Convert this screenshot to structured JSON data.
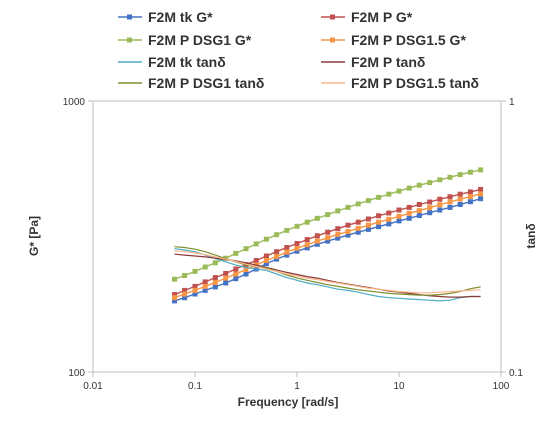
{
  "chart_data": {
    "type": "line",
    "title": "",
    "xlabel": "Frequency [rad/s]",
    "ylabel_left": "G* [Pa]",
    "ylabel_right": "tanδ",
    "x_scale": "log",
    "y_left_scale": "log",
    "y_right_scale": "log",
    "xlim": [
      0.01,
      100
    ],
    "ylim_left": [
      100,
      1000
    ],
    "ylim_right": [
      0.1,
      1
    ],
    "x_ticks": [
      "0.01",
      "0.1",
      "1",
      "10",
      "100"
    ],
    "y_left_ticks": [
      "100",
      "1000"
    ],
    "y_right_ticks": [
      "0.1",
      "1"
    ],
    "grid": false,
    "legend_position": "top",
    "x": [
      0.063,
      0.079,
      0.1,
      0.126,
      0.158,
      0.2,
      0.251,
      0.316,
      0.398,
      0.501,
      0.631,
      0.794,
      1.0,
      1.26,
      1.58,
      2.0,
      2.51,
      3.16,
      3.98,
      5.01,
      6.31,
      7.94,
      10.0,
      12.6,
      15.8,
      20.0,
      25.1,
      31.6,
      39.8,
      50.1,
      63.1
    ],
    "series": [
      {
        "name": "F2M tk G*",
        "axis": "left",
        "marker": "square",
        "color": "#4472C4",
        "values": [
          183,
          188,
          194,
          200,
          206,
          213,
          221,
          230,
          240,
          251,
          261,
          270,
          279,
          287,
          296,
          304,
          312,
          320,
          328,
          336,
          344,
          352,
          361,
          369,
          378,
          387,
          396,
          405,
          415,
          425,
          436
        ]
      },
      {
        "name": "F2M P G*",
        "axis": "left",
        "marker": "square",
        "color": "#C0504D",
        "values": [
          193,
          200,
          207,
          215,
          223,
          231,
          240,
          249,
          258,
          268,
          278,
          288,
          298,
          308,
          318,
          328,
          338,
          348,
          357,
          367,
          377,
          386,
          396,
          405,
          415,
          424,
          434,
          443,
          453,
          462,
          472
        ]
      },
      {
        "name": "F2M P DSG1 G*",
        "axis": "left",
        "marker": "square",
        "color": "#9BBB59",
        "values": [
          220,
          227,
          235,
          244,
          253,
          263,
          274,
          285,
          297,
          309,
          321,
          333,
          345,
          357,
          369,
          381,
          393,
          405,
          417,
          429,
          441,
          453,
          465,
          477,
          489,
          500,
          512,
          523,
          535,
          546,
          557
        ]
      },
      {
        "name": "F2M P DSG1.5 G*",
        "axis": "left",
        "marker": "square",
        "color": "#F79646",
        "values": [
          188,
          194,
          200,
          207,
          214,
          222,
          230,
          239,
          248,
          258,
          267,
          277,
          286,
          295,
          304,
          313,
          322,
          330,
          339,
          348,
          357,
          366,
          375,
          385,
          394,
          404,
          414,
          424,
          434,
          444,
          454
        ]
      },
      {
        "name": "F2M tk tanδ",
        "axis": "right",
        "marker": "none",
        "color": "#4BACC6",
        "values": [
          0.285,
          0.282,
          0.278,
          0.27,
          0.262,
          0.255,
          0.248,
          0.243,
          0.24,
          0.237,
          0.23,
          0.223,
          0.218,
          0.213,
          0.21,
          0.206,
          0.202,
          0.2,
          0.197,
          0.193,
          0.19,
          0.188,
          0.187,
          0.186,
          0.185,
          0.184,
          0.183,
          0.184,
          0.188,
          0.19,
          0.19
        ]
      },
      {
        "name": "F2M P tanδ",
        "axis": "right",
        "marker": "none",
        "color": "#8B3A3A",
        "values": [
          0.272,
          0.27,
          0.268,
          0.266,
          0.263,
          0.26,
          0.257,
          0.253,
          0.248,
          0.243,
          0.238,
          0.233,
          0.229,
          0.225,
          0.222,
          0.218,
          0.214,
          0.211,
          0.208,
          0.205,
          0.202,
          0.199,
          0.197,
          0.195,
          0.193,
          0.191,
          0.19,
          0.189,
          0.189,
          0.19,
          0.19
        ]
      },
      {
        "name": "F2M P DSG1 tanδ",
        "axis": "right",
        "marker": "none",
        "color": "#7F8F2F",
        "values": [
          0.29,
          0.288,
          0.284,
          0.278,
          0.27,
          0.262,
          0.255,
          0.248,
          0.245,
          0.242,
          0.235,
          0.228,
          0.222,
          0.218,
          0.214,
          0.21,
          0.207,
          0.204,
          0.201,
          0.199,
          0.197,
          0.195,
          0.194,
          0.193,
          0.192,
          0.192,
          0.193,
          0.195,
          0.198,
          0.203,
          0.206
        ]
      },
      {
        "name": "F2M P DSG1.5 tanδ",
        "axis": "right",
        "marker": "none",
        "color": "#FAB68A",
        "values": [
          0.28,
          0.278,
          0.275,
          0.271,
          0.266,
          0.261,
          0.256,
          0.25,
          0.245,
          0.24,
          0.235,
          0.23,
          0.226,
          0.222,
          0.219,
          0.216,
          0.213,
          0.21,
          0.207,
          0.204,
          0.202,
          0.2,
          0.198,
          0.197,
          0.196,
          0.196,
          0.197,
          0.198,
          0.199,
          0.2,
          0.201
        ]
      }
    ]
  }
}
